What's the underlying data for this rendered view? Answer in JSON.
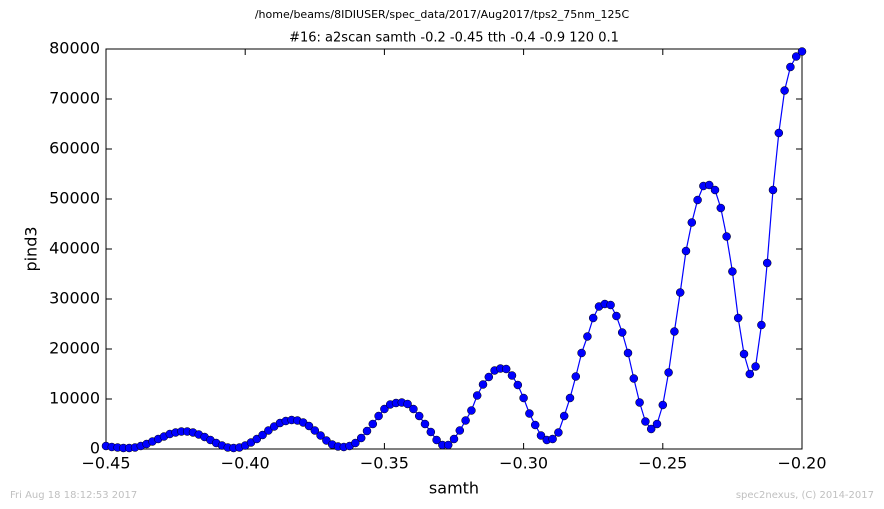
{
  "chart_data": {
    "type": "line",
    "suptitle": "/home/beams/8IDIUSER/spec_data/2017/Aug2017/tps2_75nm_125C",
    "title": "#16: a2scan  samth -0.2 -0.45  tth -0.4 -0.9  120 0.1",
    "xlabel": "samth",
    "ylabel": "pind3",
    "x": [
      -0.45,
      -0.44792,
      -0.44583,
      -0.44375,
      -0.44167,
      -0.43958,
      -0.4375,
      -0.43542,
      -0.43333,
      -0.43125,
      -0.42917,
      -0.42708,
      -0.425,
      -0.42292,
      -0.42083,
      -0.41875,
      -0.41667,
      -0.41458,
      -0.4125,
      -0.41042,
      -0.40833,
      -0.40625,
      -0.40417,
      -0.40208,
      -0.4,
      -0.39792,
      -0.39583,
      -0.39375,
      -0.39167,
      -0.38958,
      -0.3875,
      -0.38542,
      -0.38333,
      -0.38125,
      -0.37917,
      -0.37708,
      -0.375,
      -0.37292,
      -0.37083,
      -0.36875,
      -0.36667,
      -0.36458,
      -0.3625,
      -0.36042,
      -0.35833,
      -0.35625,
      -0.35417,
      -0.35208,
      -0.35,
      -0.34792,
      -0.34583,
      -0.34375,
      -0.34167,
      -0.33958,
      -0.3375,
      -0.33542,
      -0.33333,
      -0.33125,
      -0.32917,
      -0.32708,
      -0.325,
      -0.32292,
      -0.32083,
      -0.31875,
      -0.31667,
      -0.31458,
      -0.3125,
      -0.31042,
      -0.30833,
      -0.30625,
      -0.30417,
      -0.30208,
      -0.3,
      -0.29792,
      -0.29583,
      -0.29375,
      -0.29167,
      -0.28958,
      -0.2875,
      -0.28542,
      -0.28333,
      -0.28125,
      -0.27917,
      -0.27708,
      -0.275,
      -0.27292,
      -0.27083,
      -0.26875,
      -0.26667,
      -0.26458,
      -0.2625,
      -0.26042,
      -0.25833,
      -0.25625,
      -0.25417,
      -0.25208,
      -0.25,
      -0.24792,
      -0.24583,
      -0.24375,
      -0.24167,
      -0.23958,
      -0.2375,
      -0.23542,
      -0.23333,
      -0.23125,
      -0.22917,
      -0.22708,
      -0.225,
      -0.22292,
      -0.22083,
      -0.21875,
      -0.21667,
      -0.21458,
      -0.2125,
      -0.21042,
      -0.20833,
      -0.20625,
      -0.20417,
      -0.20208,
      -0.2
    ],
    "series": [
      {
        "name": "pind3",
        "color": "#0000ff",
        "values": [
          600,
          400,
          300,
          200,
          200,
          300,
          600,
          1000,
          1500,
          2000,
          2500,
          3000,
          3300,
          3500,
          3500,
          3300,
          2900,
          2400,
          1800,
          1200,
          700,
          300,
          200,
          300,
          700,
          1300,
          2000,
          2800,
          3700,
          4500,
          5200,
          5600,
          5800,
          5700,
          5300,
          4600,
          3700,
          2700,
          1700,
          900,
          500,
          400,
          600,
          1200,
          2200,
          3600,
          5000,
          6600,
          8000,
          8900,
          9200,
          9300,
          9000,
          8000,
          6600,
          5000,
          3400,
          1800,
          800,
          800,
          2000,
          3700,
          5700,
          7700,
          10700,
          12900,
          14400,
          15700,
          16100,
          16000,
          14700,
          12800,
          10200,
          7100,
          4800,
          2700,
          1800,
          2000,
          3300,
          6600,
          10200,
          14500,
          19200,
          22500,
          26200,
          28500,
          29000,
          28800,
          26600,
          23300,
          19200,
          14100,
          9300,
          5500,
          4000,
          5000,
          8800,
          15300,
          23500,
          31300,
          39600,
          45300,
          49800,
          52600,
          52800,
          51800,
          48200,
          42500,
          35500,
          26200,
          19000,
          15000,
          16500,
          24800,
          37200,
          51800,
          63200,
          71700,
          76400,
          78500,
          79500
        ]
      }
    ],
    "xlim": [
      -0.45,
      -0.2
    ],
    "xticks": [
      {
        "value": -0.45,
        "label": "−0.45"
      },
      {
        "value": -0.4,
        "label": "−0.40"
      },
      {
        "value": -0.35,
        "label": "−0.35"
      },
      {
        "value": -0.3,
        "label": "−0.30"
      },
      {
        "value": -0.25,
        "label": "−0.25"
      },
      {
        "value": -0.2,
        "label": "−0.20"
      }
    ],
    "ylim": [
      0,
      80000
    ],
    "yticks": [
      0,
      10000,
      20000,
      30000,
      40000,
      50000,
      60000,
      70000,
      80000
    ],
    "grid": false
  },
  "footer": {
    "left": "Fri Aug 18 18:12:53 2017",
    "right": "spec2nexus, (C) 2014-2017"
  }
}
